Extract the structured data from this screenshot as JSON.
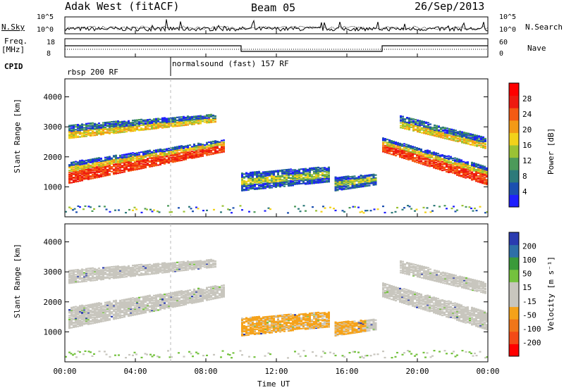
{
  "header": {
    "title": "Adak West (fitACF)",
    "beam": "Beam 05",
    "date": "26/Sep/2013"
  },
  "noise_panel": {
    "left_label": "N.Sky",
    "right_label": "N.Search",
    "left_ticks": [
      "10^5",
      "10^0"
    ],
    "right_ticks": [
      "10^5",
      "10^0"
    ]
  },
  "freq_panel": {
    "left_label_1": "Freq.",
    "left_label_2": "[MHz]",
    "right_label": "Nave",
    "left_ticks": [
      "18",
      "8"
    ],
    "right_ticks": [
      "60",
      "0"
    ]
  },
  "cpid": {
    "label": "CPID",
    "segments": [
      "rbsp 200 RF",
      "normalsound (fast) 157 RF"
    ]
  },
  "chart_data": [
    {
      "type": "heatmap",
      "name": "power",
      "ylabel": "Slant Range [km]",
      "xlabel": "",
      "yticks": [
        "1000",
        "2000",
        "3000",
        "4000"
      ],
      "ylim": [
        0,
        4600
      ],
      "xlim_hours": [
        0,
        24
      ],
      "colorbar": {
        "label": "Power [dB]",
        "ticks": [
          "4",
          "8",
          "12",
          "16",
          "20",
          "24",
          "28"
        ],
        "colors": [
          "#1f1fff",
          "#1b4fb0",
          "#2d7a7a",
          "#4c9a5a",
          "#9ac234",
          "#f2d21a",
          "#f39a16",
          "#f45a12",
          "#ee1a10",
          "#ff0000"
        ]
      }
    },
    {
      "type": "heatmap",
      "name": "velocity",
      "ylabel": "Slant Range [km]",
      "xlabel": "Time UT",
      "yticks": [
        "1000",
        "2000",
        "3000",
        "4000"
      ],
      "ylim": [
        0,
        4600
      ],
      "xlim_hours": [
        0,
        24
      ],
      "colorbar": {
        "label": "Velocity [m s⁻¹]",
        "ticks": [
          "200",
          "100",
          "50",
          "15",
          "-15",
          "-50",
          "-100",
          "-200"
        ],
        "colors": [
          "#2a3bb0",
          "#2e6fa8",
          "#3a9a3a",
          "#74c23e",
          "#c8c6be",
          "#c8c6be",
          "#f5a21a",
          "#f0761a",
          "#f34a16",
          "#ff0000"
        ]
      }
    }
  ],
  "xaxis": {
    "ticks": [
      "00:00",
      "04:00",
      "08:00",
      "12:00",
      "16:00",
      "20:00",
      "00:00"
    ]
  },
  "colors": {
    "power_core": "#ff2010",
    "power_mid": "#f2d21a",
    "power_edge": "#1b4fb0",
    "vel_ground": "#c8c6be",
    "vel_negative": "#f5a21a",
    "vel_positive": "#74c23e"
  }
}
